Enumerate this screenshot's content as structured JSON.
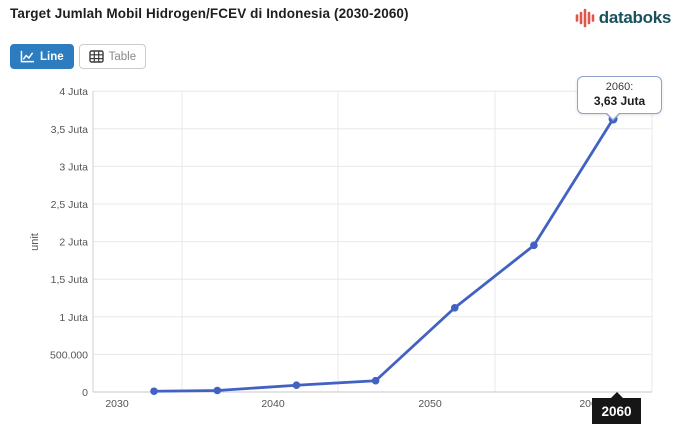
{
  "header": {
    "title": "Target Jumlah Mobil Hidrogen/FCEV di Indonesia (2030-2060)",
    "brand": "databoks"
  },
  "toolbar": {
    "line_label": "Line",
    "table_label": "Table"
  },
  "chart_data": {
    "type": "line",
    "title": "Target Jumlah Mobil Hidrogen/FCEV di Indonesia (2030-2060)",
    "xlabel": "",
    "ylabel": "unit",
    "x": [
      2031,
      2035,
      2040,
      2045,
      2050,
      2055,
      2060
    ],
    "series": [
      {
        "name": "unit",
        "values": [
          10000,
          20000,
          90000,
          150000,
          1120000,
          1950000,
          3630000
        ]
      }
    ],
    "xlim": [
      2030,
      2062
    ],
    "ylim": [
      0,
      4000000
    ],
    "x_tick_labels": [
      "2030",
      "2040",
      "2050",
      "2060"
    ],
    "y_tick_labels": [
      "0",
      "500.000",
      "1 Juta",
      "1,5 Juta",
      "2 Juta",
      "2,5 Juta",
      "3 Juta",
      "3,5 Juta",
      "4 Juta"
    ],
    "grid": true,
    "legend": false,
    "hover": {
      "tooltip_title": "2060:",
      "tooltip_value": "3,63 Juta",
      "axis_label": "2060"
    }
  },
  "theme": {
    "accent_button_blue": "#2d7cbf",
    "series_line_blue": "#4262c3",
    "brand_icon_red": "#e0564b",
    "brand_text_teal": "#1a525c",
    "gridline_grey": "#e8e8e8",
    "axis_text_grey": "#555555"
  }
}
